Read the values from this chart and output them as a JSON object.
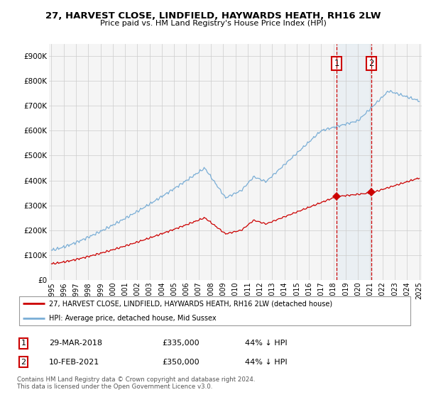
{
  "title": "27, HARVEST CLOSE, LINDFIELD, HAYWARDS HEATH, RH16 2LW",
  "subtitle": "Price paid vs. HM Land Registry's House Price Index (HPI)",
  "legend_label_red": "27, HARVEST CLOSE, LINDFIELD, HAYWARDS HEATH, RH16 2LW (detached house)",
  "legend_label_blue": "HPI: Average price, detached house, Mid Sussex",
  "transaction1_date": "29-MAR-2018",
  "transaction1_price": "£335,000",
  "transaction1_hpi": "44% ↓ HPI",
  "transaction2_date": "10-FEB-2021",
  "transaction2_price": "£350,000",
  "transaction2_hpi": "44% ↓ HPI",
  "footer": "Contains HM Land Registry data © Crown copyright and database right 2024.\nThis data is licensed under the Open Government Licence v3.0.",
  "ylim": [
    0,
    950000
  ],
  "red_color": "#cc0000",
  "blue_color": "#7aaed6",
  "shade_color": "#cce0f0",
  "marker1_x": 2018.25,
  "marker2_x": 2021.1,
  "background_color": "#ffffff",
  "grid_color": "#cccccc"
}
